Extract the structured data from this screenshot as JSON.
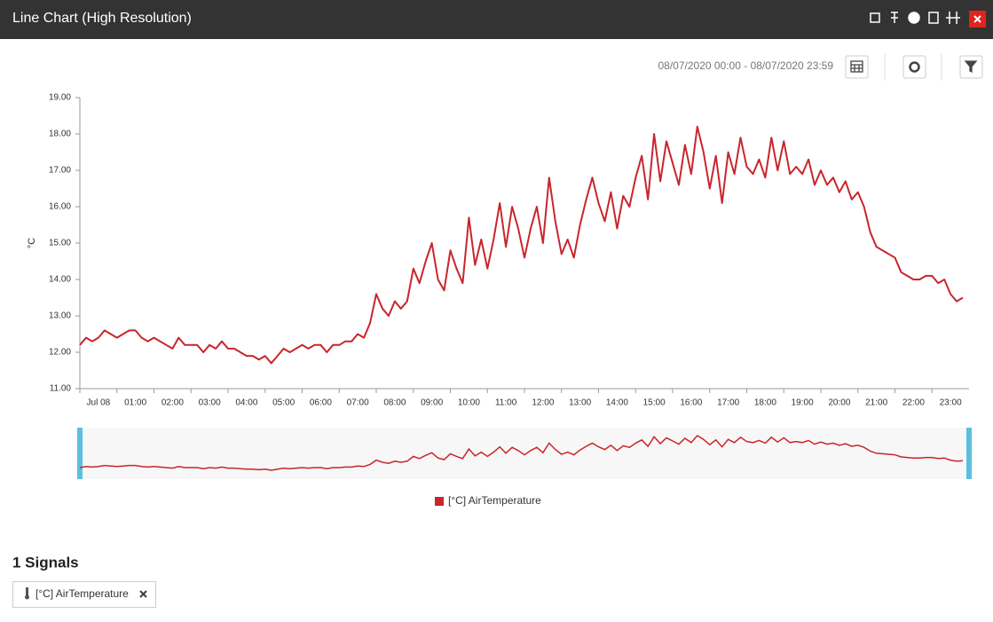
{
  "header": {
    "title": "Line Chart (High Resolution)"
  },
  "toolbar": {
    "date_range": "08/07/2020 00:00 - 08/07/2020 23:59"
  },
  "chart_data": {
    "type": "line",
    "y_label": "°C",
    "grid": false,
    "legend": "bottom",
    "x": [
      "00:00",
      "00:10",
      "00:20",
      "00:30",
      "00:40",
      "00:50",
      "01:00",
      "01:10",
      "01:20",
      "01:30",
      "01:40",
      "01:50",
      "02:00",
      "02:10",
      "02:20",
      "02:30",
      "02:40",
      "02:50",
      "03:00",
      "03:10",
      "03:20",
      "03:30",
      "03:40",
      "03:50",
      "04:00",
      "04:10",
      "04:20",
      "04:30",
      "04:40",
      "04:50",
      "05:00",
      "05:10",
      "05:20",
      "05:30",
      "05:40",
      "05:50",
      "06:00",
      "06:10",
      "06:20",
      "06:30",
      "06:40",
      "06:50",
      "07:00",
      "07:10",
      "07:20",
      "07:30",
      "07:40",
      "07:50",
      "08:00",
      "08:10",
      "08:20",
      "08:30",
      "08:40",
      "08:50",
      "09:00",
      "09:10",
      "09:20",
      "09:30",
      "09:40",
      "09:50",
      "10:00",
      "10:10",
      "10:20",
      "10:30",
      "10:40",
      "10:50",
      "11:00",
      "11:10",
      "11:20",
      "11:30",
      "11:40",
      "11:50",
      "12:00",
      "12:10",
      "12:20",
      "12:30",
      "12:40",
      "12:50",
      "13:00",
      "13:10",
      "13:20",
      "13:30",
      "13:40",
      "13:50",
      "14:00",
      "14:10",
      "14:20",
      "14:30",
      "14:40",
      "14:50",
      "15:00",
      "15:10",
      "15:20",
      "15:30",
      "15:40",
      "15:50",
      "16:00",
      "16:10",
      "16:20",
      "16:30",
      "16:40",
      "16:50",
      "17:00",
      "17:10",
      "17:20",
      "17:30",
      "17:40",
      "17:50",
      "18:00",
      "18:10",
      "18:20",
      "18:30",
      "18:40",
      "18:50",
      "19:00",
      "19:10",
      "19:20",
      "19:30",
      "19:40",
      "19:50",
      "20:00",
      "20:10",
      "20:20",
      "20:30",
      "20:40",
      "20:50",
      "21:00",
      "21:10",
      "21:20",
      "21:30",
      "21:40",
      "21:50",
      "22:00",
      "22:10",
      "22:20",
      "22:30",
      "22:40",
      "22:50",
      "23:00",
      "23:10",
      "23:20",
      "23:30",
      "23:40",
      "23:50"
    ],
    "series": [
      {
        "name": "[°C] AirTemperature",
        "color": "#c9252c",
        "values": [
          12.2,
          12.4,
          12.3,
          12.4,
          12.6,
          12.5,
          12.4,
          12.5,
          12.6,
          12.6,
          12.4,
          12.3,
          12.4,
          12.3,
          12.2,
          12.1,
          12.4,
          12.2,
          12.2,
          12.2,
          12.0,
          12.2,
          12.1,
          12.3,
          12.1,
          12.1,
          12.0,
          11.9,
          11.9,
          11.8,
          11.9,
          11.7,
          11.9,
          12.1,
          12.0,
          12.1,
          12.2,
          12.1,
          12.2,
          12.2,
          12.0,
          12.2,
          12.2,
          12.3,
          12.3,
          12.5,
          12.4,
          12.8,
          13.6,
          13.2,
          13.0,
          13.4,
          13.2,
          13.4,
          14.3,
          13.9,
          14.5,
          15.0,
          14.0,
          13.7,
          14.8,
          14.3,
          13.9,
          15.7,
          14.4,
          15.1,
          14.3,
          15.1,
          16.1,
          14.9,
          16.0,
          15.4,
          14.6,
          15.4,
          16.0,
          15.0,
          16.8,
          15.6,
          14.7,
          15.1,
          14.6,
          15.5,
          16.2,
          16.8,
          16.1,
          15.6,
          16.4,
          15.4,
          16.3,
          16.0,
          16.8,
          17.4,
          16.2,
          18.0,
          16.7,
          17.8,
          17.2,
          16.6,
          17.7,
          16.9,
          18.2,
          17.5,
          16.5,
          17.4,
          16.1,
          17.5,
          16.9,
          17.9,
          17.1,
          16.9,
          17.3,
          16.8,
          17.9,
          17.0,
          17.8,
          16.9,
          17.1,
          16.9,
          17.3,
          16.6,
          17.0,
          16.6,
          16.8,
          16.4,
          16.7,
          16.2,
          16.4,
          16.0,
          15.3,
          14.9,
          14.8,
          14.7,
          14.6,
          14.2,
          14.1,
          14.0,
          14.0,
          14.1,
          14.1,
          13.9,
          14.0,
          13.6,
          13.4,
          13.5
        ]
      }
    ],
    "xlim": [
      "00:00",
      "24:00"
    ],
    "xticks": [
      {
        "value": "00:00",
        "label": "Jul 08"
      },
      "01:00",
      "02:00",
      "03:00",
      "04:00",
      "05:00",
      "06:00",
      "07:00",
      "08:00",
      "09:00",
      "10:00",
      "11:00",
      "12:00",
      "13:00",
      "14:00",
      "15:00",
      "16:00",
      "17:00",
      "18:00",
      "19:00",
      "20:00",
      "21:00",
      "22:00",
      "23:00"
    ],
    "ylim": [
      11,
      19
    ],
    "yticks": [
      {
        "value": 11,
        "label": "11.00"
      },
      {
        "value": 12,
        "label": "12.00"
      },
      {
        "value": 13,
        "label": "13.00"
      },
      {
        "value": 14,
        "label": "14.00"
      },
      {
        "value": 15,
        "label": "15.00"
      },
      {
        "value": 16,
        "label": "16.00"
      },
      {
        "value": 17,
        "label": "17.00"
      },
      {
        "value": 18,
        "label": "18.00"
      },
      {
        "value": 19,
        "label": "19.00"
      }
    ]
  },
  "signals": {
    "title": "1 Signals",
    "items": [
      "[°C] AirTemperature"
    ]
  }
}
